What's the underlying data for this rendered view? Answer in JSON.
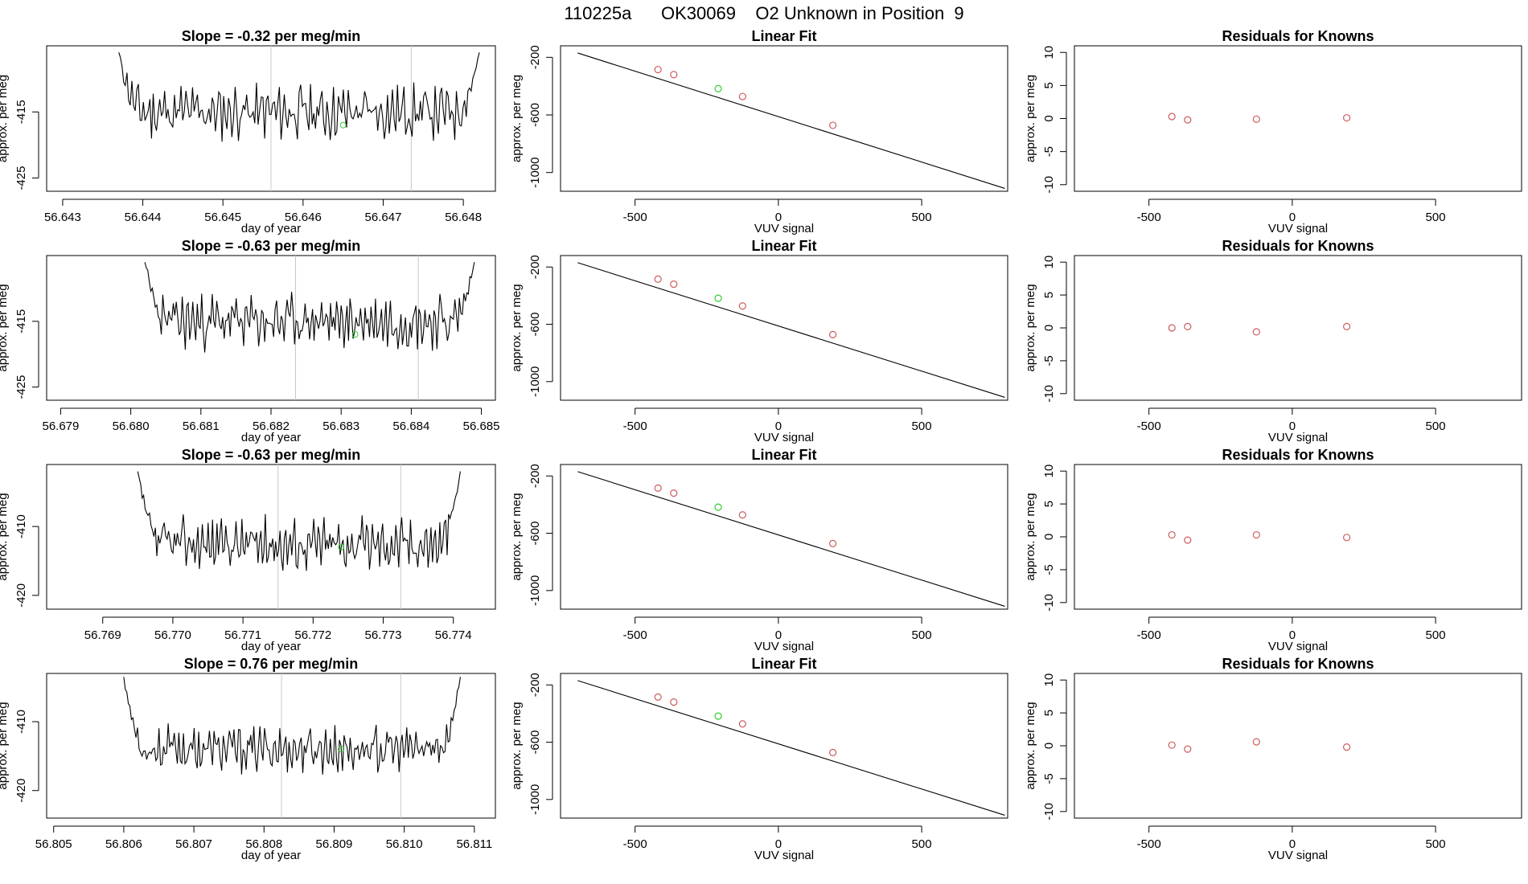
{
  "page": {
    "title": "110225a      OK30069    O2 Unknown in Position  9"
  },
  "colors": {
    "line": "#000000",
    "known_point": "#cd5c5c",
    "unknown_point": "#32cd32",
    "marker_line": "#c8c8c8"
  },
  "chart_data": [
    {
      "type": "line",
      "panel": "timeseries",
      "row": 1,
      "title": "Slope =  -0.32  per meg/min",
      "xlabel": "day of year",
      "ylabel": "approx. per meg",
      "xlim": [
        56.6428,
        56.6484
      ],
      "ylim": [
        -427,
        -405
      ],
      "xticks": [
        "56.643",
        "56.644",
        "56.645",
        "56.646",
        "56.647",
        "56.648"
      ],
      "xtick_values": [
        56.643,
        56.644,
        56.645,
        56.646,
        56.647,
        56.648
      ],
      "yticks": [
        "-415",
        "-425"
      ],
      "ytick_values": [
        -415,
        -425
      ],
      "x_start": 56.6437,
      "x_end": 56.6482,
      "start_value": -406,
      "end_value": -406,
      "base_value": -415,
      "amplitude": 3,
      "seed": 11,
      "vlines": [
        56.6456,
        56.64735
      ],
      "unknown_point": {
        "x": 56.6465,
        "y": -417
      }
    },
    {
      "type": "scatter",
      "panel": "linear-fit",
      "row": 1,
      "title": "Linear Fit",
      "xlabel": "VUV signal",
      "ylabel": "approx. per meg",
      "xlim": [
        -760,
        800
      ],
      "ylim": [
        -1130,
        -120
      ],
      "xticks": [
        "-500",
        "0",
        "500"
      ],
      "xtick_values": [
        -500,
        0,
        500
      ],
      "yticks": [
        "-200",
        "-600",
        "-1000"
      ],
      "ytick_values": [
        -200,
        -600,
        -1000
      ],
      "fit_line": {
        "x": [
          -700,
          790
        ],
        "y": [
          -170,
          -1110
        ]
      },
      "knowns": {
        "x": [
          -420,
          -365,
          -125,
          190
        ],
        "y": [
          -285,
          -320,
          -472,
          -672
        ]
      },
      "unknown": {
        "x": [
          -210
        ],
        "y": [
          -418
        ]
      }
    },
    {
      "type": "scatter",
      "panel": "residuals",
      "row": 1,
      "title": "Residuals for Knowns",
      "xlabel": "VUV signal",
      "ylabel": "approx. per meg",
      "xlim": [
        -760,
        800
      ],
      "ylim": [
        -11,
        11
      ],
      "xticks": [
        "-500",
        "0",
        "500"
      ],
      "xtick_values": [
        -500,
        0,
        500
      ],
      "yticks": [
        "10",
        "5",
        "0",
        "-5",
        "-10"
      ],
      "ytick_values": [
        10,
        5,
        0,
        -5,
        -10
      ],
      "points": {
        "x": [
          -420,
          -365,
          -125,
          190
        ],
        "y": [
          0.3,
          -0.2,
          -0.1,
          0.1
        ]
      }
    },
    {
      "type": "line",
      "panel": "timeseries",
      "row": 2,
      "title": "Slope =  -0.63  per meg/min",
      "xlabel": "day of year",
      "ylabel": "approx. per meg",
      "xlim": [
        56.6788,
        56.6852
      ],
      "ylim": [
        -427,
        -405
      ],
      "xticks": [
        "56.679",
        "56.680",
        "56.681",
        "56.682",
        "56.683",
        "56.684",
        "56.685"
      ],
      "xtick_values": [
        56.679,
        56.68,
        56.681,
        56.682,
        56.683,
        56.684,
        56.685
      ],
      "yticks": [
        "-415",
        "-425"
      ],
      "ytick_values": [
        -415,
        -425
      ],
      "x_start": 56.6802,
      "x_end": 56.6849,
      "start_value": -406,
      "end_value": -406,
      "base_value": -415,
      "amplitude": 3,
      "seed": 23,
      "vlines": [
        56.68235,
        56.6841
      ],
      "unknown_point": {
        "x": 56.6832,
        "y": -417
      }
    },
    {
      "type": "scatter",
      "panel": "linear-fit",
      "row": 2,
      "title": "Linear Fit",
      "xlabel": "VUV signal",
      "ylabel": "approx. per meg",
      "xlim": [
        -760,
        800
      ],
      "ylim": [
        -1130,
        -120
      ],
      "xticks": [
        "-500",
        "0",
        "500"
      ],
      "xtick_values": [
        -500,
        0,
        500
      ],
      "yticks": [
        "-200",
        "-600",
        "-1000"
      ],
      "ytick_values": [
        -200,
        -600,
        -1000
      ],
      "fit_line": {
        "x": [
          -700,
          790
        ],
        "y": [
          -170,
          -1110
        ]
      },
      "knowns": {
        "x": [
          -420,
          -365,
          -125,
          190
        ],
        "y": [
          -285,
          -320,
          -472,
          -672
        ]
      },
      "unknown": {
        "x": [
          -210
        ],
        "y": [
          -418
        ]
      }
    },
    {
      "type": "scatter",
      "panel": "residuals",
      "row": 2,
      "title": "Residuals for Knowns",
      "xlabel": "VUV signal",
      "ylabel": "approx. per meg",
      "xlim": [
        -760,
        800
      ],
      "ylim": [
        -11,
        11
      ],
      "xticks": [
        "-500",
        "0",
        "500"
      ],
      "xtick_values": [
        -500,
        0,
        500
      ],
      "yticks": [
        "10",
        "5",
        "0",
        "-5",
        "-10"
      ],
      "ytick_values": [
        10,
        5,
        0,
        -5,
        -10
      ],
      "points": {
        "x": [
          -420,
          -365,
          -125,
          190
        ],
        "y": [
          0.0,
          0.2,
          -0.6,
          0.2
        ]
      }
    },
    {
      "type": "line",
      "panel": "timeseries",
      "row": 3,
      "title": "Slope =  -0.63  per meg/min",
      "xlabel": "day of year",
      "ylabel": "approx. per meg",
      "xlim": [
        56.7682,
        56.7746
      ],
      "ylim": [
        -422,
        -401
      ],
      "xticks": [
        "56.769",
        "56.770",
        "56.771",
        "56.772",
        "56.773",
        "56.774"
      ],
      "xtick_values": [
        56.769,
        56.77,
        56.771,
        56.772,
        56.773,
        56.774
      ],
      "yticks": [
        "-410",
        "-420"
      ],
      "ytick_values": [
        -410,
        -420
      ],
      "x_start": 56.7695,
      "x_end": 56.7741,
      "start_value": -402,
      "end_value": -402,
      "base_value": -412.5,
      "amplitude": 2.8,
      "seed": 37,
      "vlines": [
        56.7715,
        56.77325
      ],
      "unknown_point": {
        "x": 56.7724,
        "y": -413
      }
    },
    {
      "type": "scatter",
      "panel": "linear-fit",
      "row": 3,
      "title": "Linear Fit",
      "xlabel": "VUV signal",
      "ylabel": "approx. per meg",
      "xlim": [
        -760,
        800
      ],
      "ylim": [
        -1130,
        -120
      ],
      "xticks": [
        "-500",
        "0",
        "500"
      ],
      "xtick_values": [
        -500,
        0,
        500
      ],
      "yticks": [
        "-200",
        "-600",
        "-1000"
      ],
      "ytick_values": [
        -200,
        -600,
        -1000
      ],
      "fit_line": {
        "x": [
          -700,
          790
        ],
        "y": [
          -170,
          -1110
        ]
      },
      "knowns": {
        "x": [
          -420,
          -365,
          -125,
          190
        ],
        "y": [
          -285,
          -320,
          -472,
          -672
        ]
      },
      "unknown": {
        "x": [
          -210
        ],
        "y": [
          -418
        ]
      }
    },
    {
      "type": "scatter",
      "panel": "residuals",
      "row": 3,
      "title": "Residuals for Knowns",
      "xlabel": "VUV signal",
      "ylabel": "approx. per meg",
      "xlim": [
        -760,
        800
      ],
      "ylim": [
        -11,
        11
      ],
      "xticks": [
        "-500",
        "0",
        "500"
      ],
      "xtick_values": [
        -500,
        0,
        500
      ],
      "yticks": [
        "10",
        "5",
        "0",
        "-5",
        "-10"
      ],
      "ytick_values": [
        10,
        5,
        0,
        -5,
        -10
      ],
      "points": {
        "x": [
          -420,
          -365,
          -125,
          190
        ],
        "y": [
          0.3,
          -0.5,
          0.3,
          -0.1
        ]
      }
    },
    {
      "type": "line",
      "panel": "timeseries",
      "row": 4,
      "title": "Slope =  0.76  per meg/min",
      "xlabel": "day of year",
      "ylabel": "approx. per meg",
      "xlim": [
        56.8049,
        56.8113
      ],
      "ylim": [
        -424,
        -403
      ],
      "xticks": [
        "56.805",
        "56.806",
        "56.807",
        "56.808",
        "56.809",
        "56.810",
        "56.811"
      ],
      "xtick_values": [
        56.805,
        56.806,
        56.807,
        56.808,
        56.809,
        56.81,
        56.811
      ],
      "yticks": [
        "-410",
        "-420"
      ],
      "ytick_values": [
        -410,
        -420
      ],
      "x_start": 56.806,
      "x_end": 56.8108,
      "start_value": -403.5,
      "end_value": -403.5,
      "base_value": -414,
      "amplitude": 2.4,
      "seed": 53,
      "vlines": [
        56.80825,
        56.80995
      ],
      "unknown_point": {
        "x": 56.8091,
        "y": -414
      }
    },
    {
      "type": "scatter",
      "panel": "linear-fit",
      "row": 4,
      "title": "Linear Fit",
      "xlabel": "VUV signal",
      "ylabel": "approx. per meg",
      "xlim": [
        -760,
        800
      ],
      "ylim": [
        -1130,
        -120
      ],
      "xticks": [
        "-500",
        "0",
        "500"
      ],
      "xtick_values": [
        -500,
        0,
        500
      ],
      "yticks": [
        "-200",
        "-600",
        "-1000"
      ],
      "ytick_values": [
        -200,
        -600,
        -1000
      ],
      "fit_line": {
        "x": [
          -700,
          790
        ],
        "y": [
          -170,
          -1110
        ]
      },
      "knowns": {
        "x": [
          -420,
          -365,
          -125,
          190
        ],
        "y": [
          -285,
          -320,
          -472,
          -672
        ]
      },
      "unknown": {
        "x": [
          -210
        ],
        "y": [
          -418
        ]
      }
    },
    {
      "type": "scatter",
      "panel": "residuals",
      "row": 4,
      "title": "Residuals for Knowns",
      "xlabel": "VUV signal",
      "ylabel": "approx. per meg",
      "xlim": [
        -760,
        800
      ],
      "ylim": [
        -11,
        11
      ],
      "xticks": [
        "-500",
        "0",
        "500"
      ],
      "xtick_values": [
        -500,
        0,
        500
      ],
      "yticks": [
        "10",
        "5",
        "0",
        "-5",
        "-10"
      ],
      "ytick_values": [
        10,
        5,
        0,
        -5,
        -10
      ],
      "points": {
        "x": [
          -420,
          -365,
          -125,
          190
        ],
        "y": [
          0.1,
          -0.5,
          0.6,
          -0.2
        ]
      }
    }
  ]
}
